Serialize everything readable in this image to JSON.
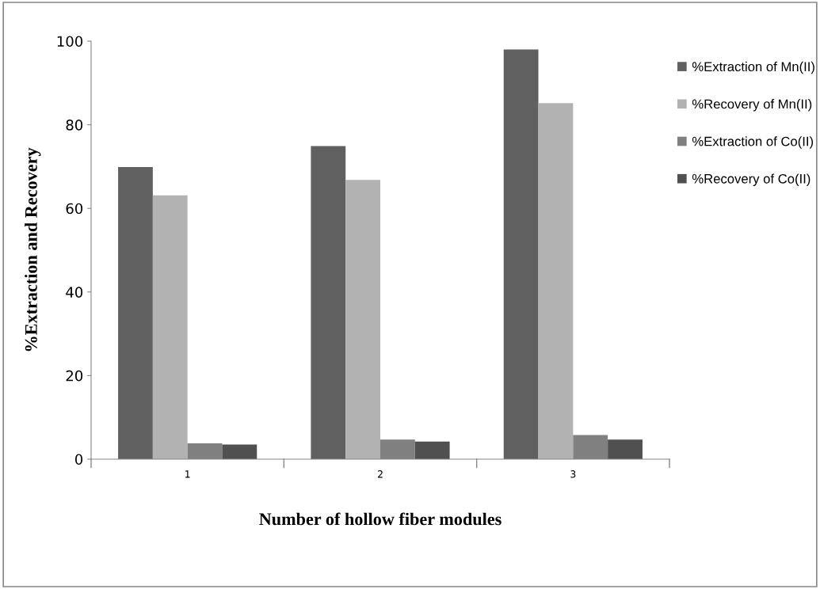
{
  "chart_data": {
    "type": "bar",
    "xlabel": "Number of hollow fiber modules",
    "ylabel": "%Extraction and Recovery",
    "categories": [
      "1",
      "2",
      "3"
    ],
    "series": [
      {
        "name": "%Extraction of Mn(II)",
        "color": "#606060",
        "values": [
          69.9,
          74.9,
          98
        ]
      },
      {
        "name": "%Recovery of Mn(II)",
        "color": "#b2b2b2",
        "values": [
          63.1,
          66.8,
          85.2
        ]
      },
      {
        "name": "%Extraction of Co(II)",
        "color": "#808080",
        "values": [
          3.8,
          4.7,
          5.8
        ]
      },
      {
        "name": "%Recovery of Co(II)",
        "color": "#505050",
        "values": [
          3.5,
          4.2,
          4.7
        ]
      }
    ],
    "ylim": [
      0,
      100
    ],
    "yticks": [
      0,
      20,
      40,
      60,
      80,
      100
    ],
    "grid": false,
    "legend": "right"
  }
}
